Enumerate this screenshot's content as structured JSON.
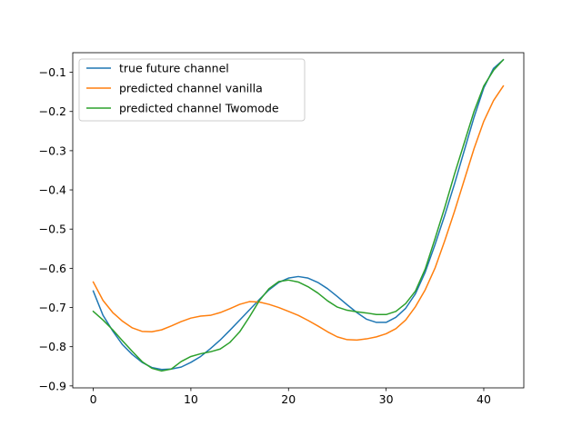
{
  "chart_data": {
    "type": "line",
    "title": "",
    "xlabel": "",
    "ylabel": "",
    "xlim": [
      -2.1,
      44.1
    ],
    "ylim": [
      -0.905,
      -0.05
    ],
    "xticks": [
      0,
      10,
      20,
      30,
      40
    ],
    "yticks": [
      -0.9,
      -0.8,
      -0.7,
      -0.6,
      -0.5,
      -0.4,
      -0.3,
      -0.2,
      -0.1
    ],
    "grid": false,
    "legend_position": "top-left",
    "x": [
      0,
      1,
      2,
      3,
      4,
      5,
      6,
      7,
      8,
      9,
      10,
      11,
      12,
      13,
      14,
      15,
      16,
      17,
      18,
      19,
      20,
      21,
      22,
      23,
      24,
      25,
      26,
      27,
      28,
      29,
      30,
      31,
      32,
      33,
      34,
      35,
      36,
      37,
      38,
      39,
      40,
      41,
      42
    ],
    "series": [
      {
        "name": "true future channel",
        "color": "#1f77b4",
        "values": [
          -0.658,
          -0.72,
          -0.76,
          -0.795,
          -0.82,
          -0.84,
          -0.853,
          -0.858,
          -0.857,
          -0.852,
          -0.84,
          -0.825,
          -0.805,
          -0.783,
          -0.758,
          -0.732,
          -0.706,
          -0.68,
          -0.655,
          -0.636,
          -0.625,
          -0.621,
          -0.625,
          -0.636,
          -0.652,
          -0.672,
          -0.693,
          -0.713,
          -0.73,
          -0.738,
          -0.738,
          -0.725,
          -0.702,
          -0.665,
          -0.61,
          -0.54,
          -0.465,
          -0.385,
          -0.3,
          -0.215,
          -0.14,
          -0.09,
          -0.068
        ]
      },
      {
        "name": "predicted channel vanilla",
        "color": "#ff7f0e",
        "values": [
          -0.635,
          -0.682,
          -0.713,
          -0.735,
          -0.752,
          -0.761,
          -0.762,
          -0.757,
          -0.747,
          -0.736,
          -0.727,
          -0.722,
          -0.72,
          -0.713,
          -0.703,
          -0.692,
          -0.685,
          -0.686,
          -0.692,
          -0.7,
          -0.71,
          -0.72,
          -0.733,
          -0.747,
          -0.762,
          -0.775,
          -0.782,
          -0.783,
          -0.78,
          -0.775,
          -0.767,
          -0.754,
          -0.732,
          -0.698,
          -0.655,
          -0.6,
          -0.53,
          -0.455,
          -0.375,
          -0.295,
          -0.225,
          -0.172,
          -0.135
        ]
      },
      {
        "name": "predicted channel Twomode",
        "color": "#2ca02c",
        "values": [
          -0.71,
          -0.732,
          -0.757,
          -0.785,
          -0.812,
          -0.838,
          -0.855,
          -0.862,
          -0.857,
          -0.838,
          -0.825,
          -0.818,
          -0.813,
          -0.806,
          -0.789,
          -0.762,
          -0.724,
          -0.683,
          -0.652,
          -0.634,
          -0.63,
          -0.635,
          -0.647,
          -0.663,
          -0.683,
          -0.699,
          -0.707,
          -0.711,
          -0.714,
          -0.718,
          -0.718,
          -0.71,
          -0.69,
          -0.658,
          -0.602,
          -0.525,
          -0.445,
          -0.36,
          -0.28,
          -0.2,
          -0.135,
          -0.095,
          -0.068
        ]
      }
    ]
  }
}
